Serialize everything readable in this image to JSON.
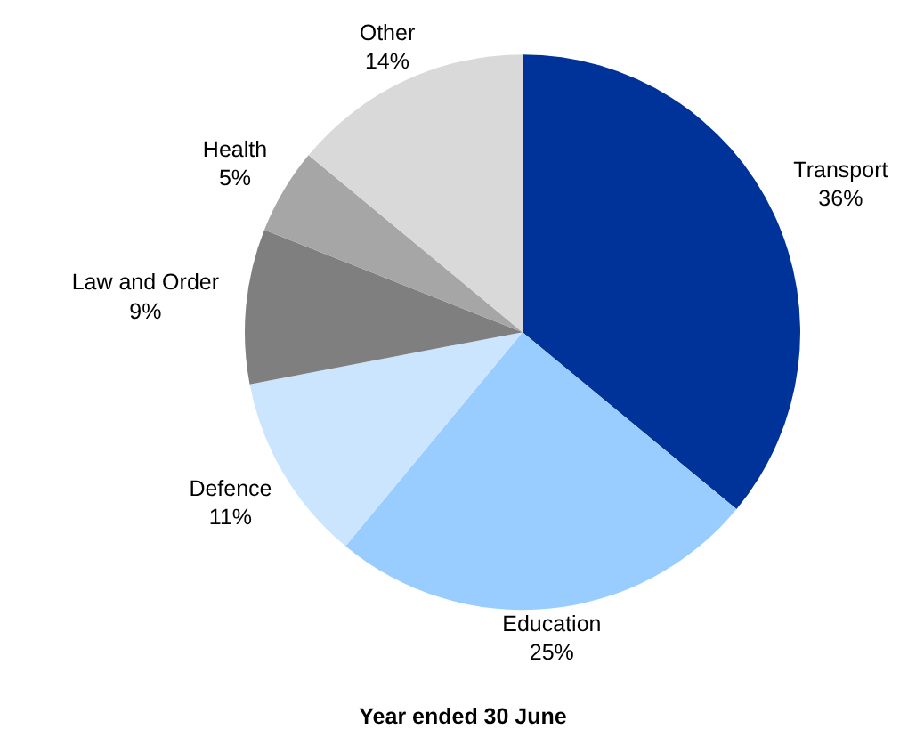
{
  "chart_data": {
    "type": "pie",
    "xlabel": "Year ended 30 June",
    "categories": [
      "Transport",
      "Education",
      "Defence",
      "Law and Order",
      "Health",
      "Other"
    ],
    "values": [
      36,
      25,
      11,
      9,
      5,
      14
    ],
    "value_labels": [
      "36%",
      "25%",
      "11%",
      "9%",
      "5%",
      "14%"
    ],
    "colors": [
      "#003399",
      "#99ccff",
      "#cce5ff",
      "#7f7f7f",
      "#a6a6a6",
      "#d9d9d9"
    ],
    "legend": false
  }
}
